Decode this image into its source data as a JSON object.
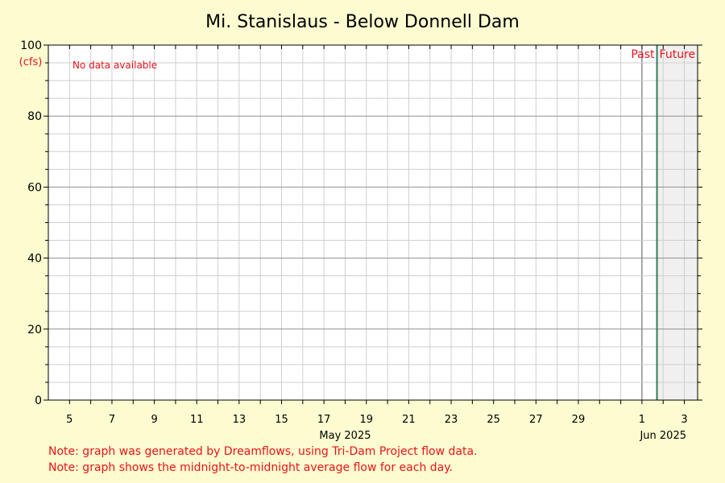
{
  "chart_data": {
    "type": "line",
    "title": "Mi. Stanislaus - Below Donnell Dam",
    "ylabel": "(cfs)",
    "ylim": [
      0,
      100
    ],
    "y_ticks": [
      0,
      20,
      40,
      60,
      80,
      100
    ],
    "xlim": [
      "2025-05-04",
      "2025-06-03 15:00"
    ],
    "x_tick_labels": [
      "5",
      "7",
      "9",
      "11",
      "13",
      "15",
      "17",
      "19",
      "21",
      "23",
      "25",
      "27",
      "29",
      "1",
      "3"
    ],
    "x_tick_dates": [
      "2025-05-05",
      "2025-05-07",
      "2025-05-09",
      "2025-05-11",
      "2025-05-13",
      "2025-05-15",
      "2025-05-17",
      "2025-05-19",
      "2025-05-21",
      "2025-05-23",
      "2025-05-25",
      "2025-05-27",
      "2025-05-29",
      "2025-06-01",
      "2025-06-03"
    ],
    "month_labels": [
      {
        "label": "May 2025",
        "date": "2025-05-18"
      },
      {
        "label": "Jun 2025",
        "date": "2025-06-02"
      }
    ],
    "now_marker": "2025-06-01 17:00",
    "past_label": "Past",
    "future_label": "Future",
    "no_data_text": "No data available",
    "grid": true,
    "series": []
  },
  "notes": [
    "Note: graph was generated by Dreamflows, using Tri-Dam Project flow data.",
    "Note: graph shows the midnight-to-midnight average flow for each day."
  ],
  "colors": {
    "background": "#fdfbd0",
    "plot_background": "#ffffff",
    "future_shade": "#f0f0f0",
    "now_line": "#2e7d5b",
    "accent_text": "#e8141b",
    "grid_minor": "#cfcfcf",
    "grid_major": "#909090"
  }
}
